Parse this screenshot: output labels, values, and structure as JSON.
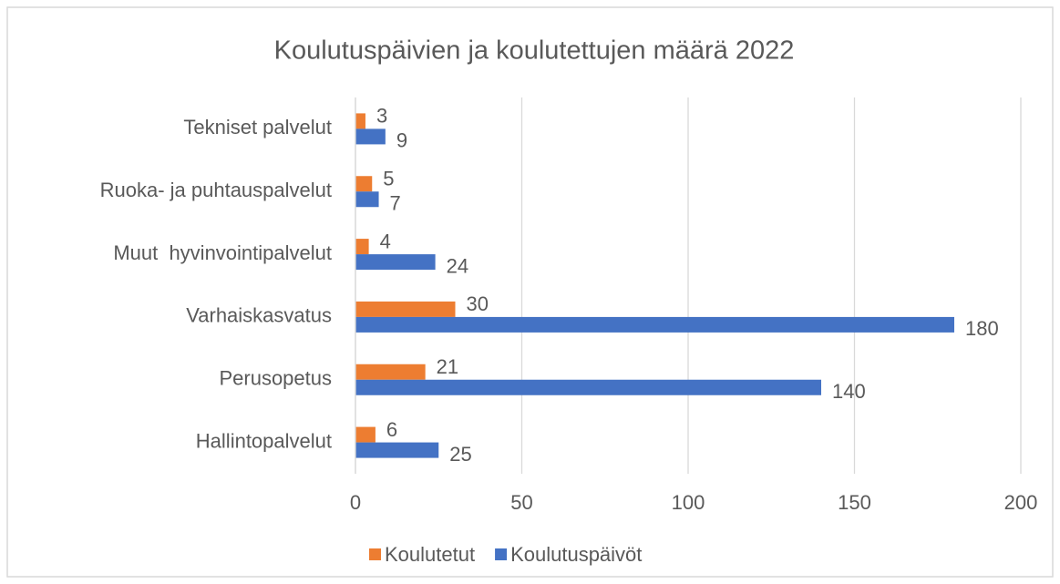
{
  "chart_data": {
    "type": "bar",
    "orientation": "horizontal",
    "title": "Koulutuspäivien ja koulutettujen määrä 2022",
    "categories": [
      "Hallintopalvelut",
      "Perusopetus",
      "Varhaiskasvatus",
      "Muut  hyvinvointipalvelut",
      "Ruoka- ja puhtauspalvelut",
      "Tekniset palvelut"
    ],
    "series": [
      {
        "name": "Koulutetut",
        "color": "#ED7D31",
        "values": [
          6,
          21,
          30,
          4,
          5,
          3
        ]
      },
      {
        "name": "Koulutuspäivöt",
        "color": "#4472C4",
        "values": [
          25,
          140,
          180,
          24,
          7,
          9
        ]
      }
    ],
    "xlim": [
      0,
      200
    ],
    "xticks": [
      0,
      50,
      100,
      150,
      200
    ],
    "grid": true,
    "legend": "bottom"
  }
}
